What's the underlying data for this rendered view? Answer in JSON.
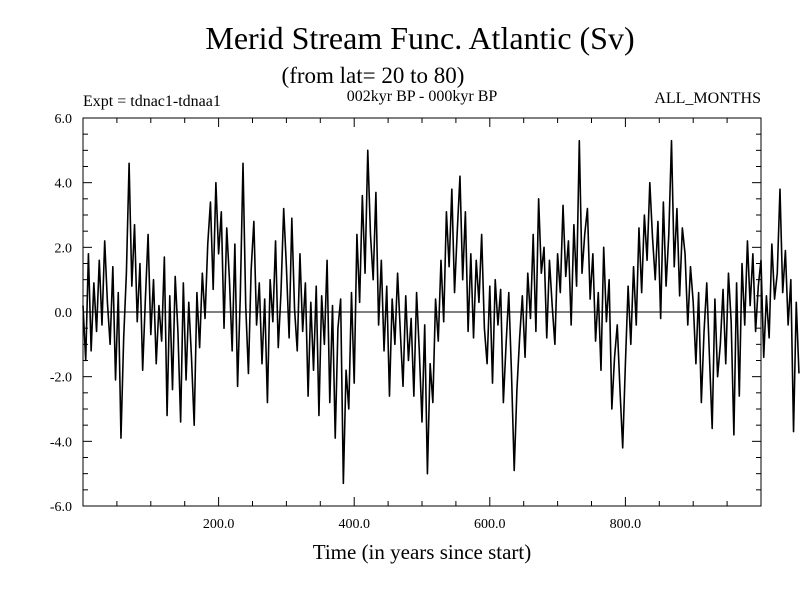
{
  "chart_data": {
    "type": "line",
    "title": "Merid Stream Func. Atlantic (Sv)",
    "subtitle": "(from lat= 20 to 80)",
    "experiment_label": "Expt = tdnac1-tdnaa1",
    "period_label": "002kyr BP - 000kyr BP",
    "months_label": "ALL_MONTHS",
    "xlabel": "Time (in years since start)",
    "ylabel": "",
    "xlim": [
      0,
      1000
    ],
    "ylim": [
      -6,
      6
    ],
    "x_ticks": [
      200,
      400,
      600,
      800
    ],
    "x_tick_labels": [
      "200.0",
      "400.0",
      "600.0",
      "800.0"
    ],
    "y_ticks": [
      -6,
      -4,
      -2,
      0,
      2,
      4,
      6
    ],
    "y_tick_labels": [
      "-6.0",
      "-4.0",
      "-2.0",
      "0.0",
      "2.0",
      "4.0",
      "6.0"
    ],
    "zero_line": true,
    "grid": false,
    "series": [
      {
        "name": "Merid Stream Func. Atlantic",
        "color": "#000000",
        "x_start": 0,
        "x_step": 4,
        "values": [
          0.2,
          -1.5,
          1.8,
          -1.2,
          0.9,
          -0.6,
          1.6,
          -0.4,
          2.2,
          0.3,
          -1.0,
          1.4,
          -2.1,
          0.6,
          -3.9,
          -0.8,
          1.2,
          4.6,
          0.8,
          2.7,
          -0.3,
          1.5,
          -1.8,
          0.4,
          2.4,
          -0.7,
          1.0,
          -1.6,
          0.2,
          -0.9,
          1.7,
          -3.2,
          0.5,
          -2.4,
          1.1,
          -0.6,
          -3.4,
          0.9,
          -2.1,
          0.3,
          -1.4,
          -3.5,
          0.6,
          -1.1,
          1.2,
          -0.2,
          2.1,
          3.4,
          0.7,
          4.0,
          1.8,
          3.1,
          -0.5,
          2.6,
          1.0,
          -1.2,
          2.1,
          -2.3,
          0.5,
          4.6,
          0.2,
          -1.9,
          1.3,
          2.8,
          -0.4,
          0.9,
          -1.6,
          0.4,
          -2.8,
          1.0,
          -0.3,
          2.2,
          -1.1,
          0.6,
          3.2,
          1.4,
          -0.8,
          2.9,
          0.1,
          -1.2,
          1.8,
          -0.6,
          0.9,
          -2.6,
          0.3,
          -1.8,
          0.8,
          -3.2,
          0.5,
          -1.0,
          1.6,
          -2.8,
          0.2,
          -3.9,
          -0.5,
          0.4,
          -5.3,
          -1.8,
          -3.0,
          0.6,
          -2.2,
          2.4,
          0.3,
          3.6,
          1.2,
          5.0,
          2.4,
          1.0,
          3.7,
          -0.4,
          1.6,
          -1.2,
          0.8,
          -2.6,
          0.4,
          -1.0,
          1.2,
          -0.6,
          -2.3,
          0.5,
          -1.5,
          -0.2,
          -2.6,
          0.6,
          -1.2,
          -3.4,
          -0.4,
          -5.0,
          -1.6,
          -2.8,
          0.4,
          -0.9,
          1.6,
          -0.3,
          3.1,
          1.4,
          3.8,
          0.6,
          2.5,
          4.2,
          1.0,
          3.1,
          -0.6,
          1.8,
          -0.8,
          1.6,
          0.3,
          2.4,
          -0.5,
          -1.6,
          0.8,
          -2.2,
          1.0,
          -0.4,
          0.7,
          -2.8,
          -1.0,
          0.6,
          -1.9,
          -4.9,
          -2.4,
          -0.8,
          0.5,
          -1.4,
          1.2,
          -0.2,
          2.4,
          -0.6,
          3.5,
          1.2,
          2.0,
          -0.8,
          1.6,
          0.2,
          -1.0,
          1.8,
          0.6,
          3.3,
          1.1,
          2.2,
          -0.4,
          2.7,
          0.8,
          5.3,
          1.2,
          2.4,
          3.2,
          0.4,
          1.8,
          -0.9,
          0.6,
          -1.8,
          2.0,
          -0.3,
          1.0,
          -3.0,
          -1.4,
          -0.4,
          -2.4,
          -4.2,
          -1.6,
          0.8,
          -1.0,
          1.4,
          -0.4,
          2.6,
          0.6,
          3.0,
          1.6,
          4.0,
          2.3,
          1.0,
          2.8,
          -0.2,
          3.4,
          0.8,
          2.4,
          5.3,
          1.4,
          3.2,
          0.5,
          2.6,
          1.8,
          -0.4,
          1.4,
          0.3,
          -1.6,
          0.6,
          -2.8,
          -0.6,
          0.9,
          -1.4,
          -3.6,
          0.4,
          -2.0,
          -1.0,
          0.7,
          -1.6,
          1.2,
          -0.3,
          -3.8,
          0.9,
          -2.6,
          1.5,
          -0.4,
          2.2,
          0.2,
          1.8,
          -0.6,
          0.8,
          1.6,
          -1.4,
          0.5,
          -0.8,
          2.1,
          0.4,
          1.2,
          3.8,
          0.6,
          1.9,
          -0.4,
          1.0,
          -3.7,
          0.3,
          -1.9
        ]
      }
    ]
  }
}
